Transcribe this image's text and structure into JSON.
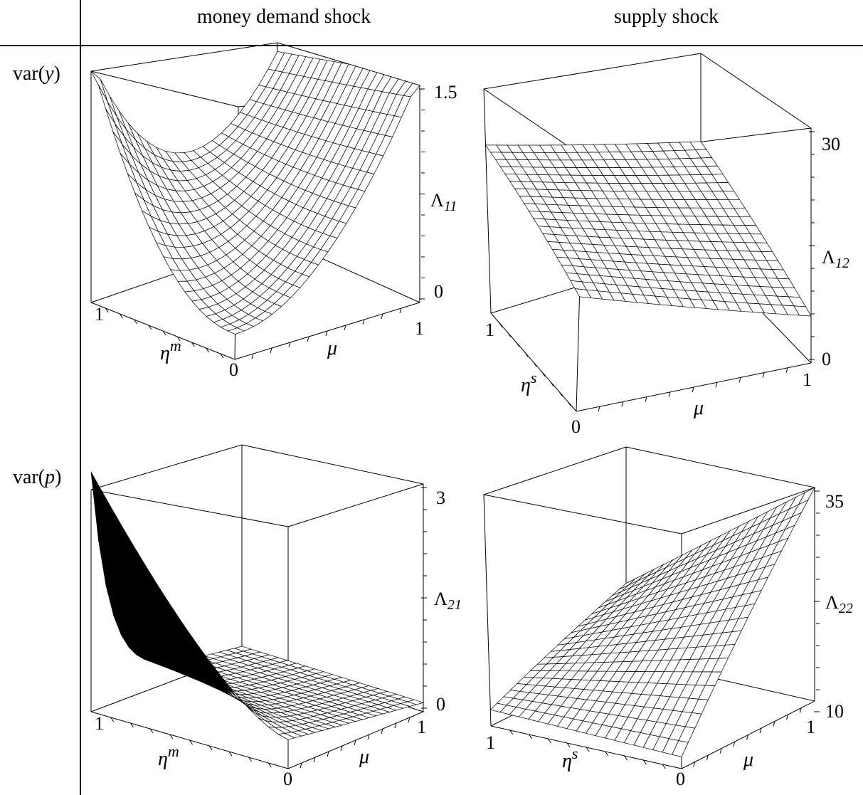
{
  "header": {
    "col1": "money demand shock",
    "col2": "supply shock"
  },
  "rows": {
    "r1": {
      "prefix": "var(",
      "var": "y",
      "suffix": ")"
    },
    "r2": {
      "prefix": "var(",
      "var": "p",
      "suffix": ")"
    }
  },
  "chart_data": [
    {
      "type": "surface3d",
      "z_label": {
        "base": "Λ",
        "sub": "11"
      },
      "eta_label": {
        "base": "η",
        "sup": "m"
      },
      "mu_label": "μ",
      "z_ticks": [
        "1.5",
        "0"
      ],
      "zlim": [
        0,
        1.5
      ],
      "eta_ticks": [
        "1",
        "0"
      ],
      "mu_ticks": [
        "1"
      ],
      "surface": "z ≈ 1.45·μ² at η=0, rising to ≈ 1.5 at μ=0, η=1; black underside near μ=0"
    },
    {
      "type": "surface3d",
      "z_label": {
        "base": "Λ",
        "sub": "12"
      },
      "eta_label": {
        "base": "η",
        "sup": "s"
      },
      "mu_label": "μ",
      "z_ticks": [
        "30",
        "0"
      ],
      "zlim": [
        0,
        30
      ],
      "eta_ticks": [
        "1",
        "0"
      ],
      "mu_ticks": [
        "1"
      ],
      "surface": "z ≈ 24 at η=1, μ=0 decreasing to ≈ 14 at η=0, μ=1; mostly black underside"
    },
    {
      "type": "surface3d",
      "z_label": {
        "base": "Λ",
        "sub": "21"
      },
      "eta_label": {
        "base": "η",
        "sup": "m"
      },
      "mu_label": "μ",
      "z_ticks": [
        "3",
        "0"
      ],
      "zlim": [
        0,
        3
      ],
      "eta_ticks": [
        "1",
        "0"
      ],
      "mu_ticks": [
        "1"
      ],
      "surface": "z ≈ 3 at μ=0, η=1 decaying to ≈ 0.2 at μ=1"
    },
    {
      "type": "surface3d",
      "z_label": {
        "base": "Λ",
        "sub": "22"
      },
      "eta_label": {
        "base": "η",
        "sup": "s"
      },
      "mu_label": "μ",
      "z_ticks": [
        "35",
        "10"
      ],
      "zlim": [
        10,
        35
      ],
      "eta_ticks": [
        "1",
        "0"
      ],
      "mu_ticks": [
        "1"
      ],
      "surface": "z ≈ 12 at η=1, μ=0 increasing to ≈ 35 at η=0, μ=1; black underside for large μ"
    }
  ]
}
